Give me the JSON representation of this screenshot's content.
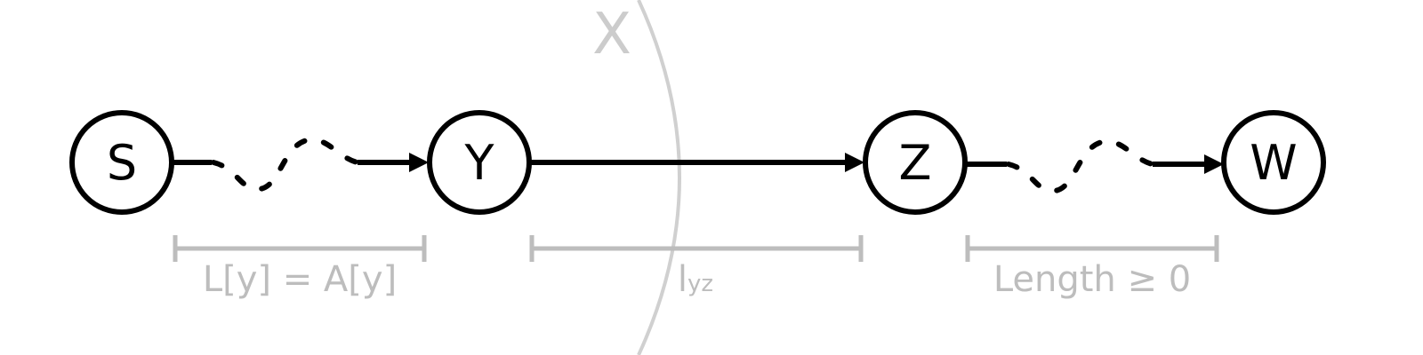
{
  "cut": {
    "label": "X"
  },
  "nodes": [
    {
      "id": "S",
      "label": "S"
    },
    {
      "id": "Y",
      "label": "Y"
    },
    {
      "id": "Z",
      "label": "Z"
    },
    {
      "id": "W",
      "label": "W"
    }
  ],
  "edges": [
    {
      "from": "S",
      "to": "Y",
      "style": "dotted-path"
    },
    {
      "from": "Y",
      "to": "Z",
      "style": "solid"
    },
    {
      "from": "Z",
      "to": "W",
      "style": "dotted-path"
    }
  ],
  "segments": [
    {
      "text": "L[y] = A[y]"
    },
    {
      "main": "l",
      "sub": "yz"
    },
    {
      "text": "Length ≥ 0"
    }
  ],
  "colors": {
    "node_stroke": "#000000",
    "annotation": "#bdbdbd",
    "cut": "#d0d0d0"
  }
}
